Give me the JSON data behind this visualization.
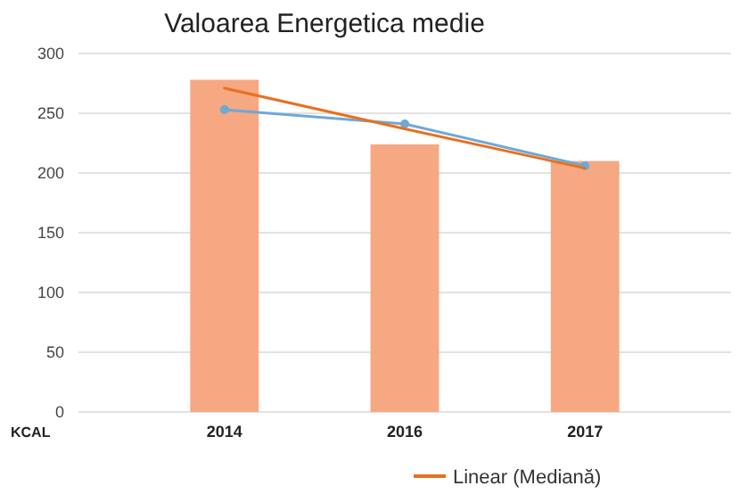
{
  "chart_data": {
    "type": "bar",
    "title": "Valoarea Energetica medie",
    "categories": [
      "2014",
      "2016",
      "2017"
    ],
    "series": [
      {
        "color": "#f5a882",
        "values": [
          278,
          224,
          210
        ]
      },
      {
        "type": "line",
        "color": "#6fa8d6",
        "values": [
          253,
          241,
          206
        ],
        "marker": "circle"
      },
      {
        "type": "line",
        "name": "Linear (Mediană)",
        "color": "#e8701f",
        "values": [
          271,
          237,
          204
        ],
        "marker": "none"
      }
    ],
    "ylabel": "KCAL",
    "ylim": [
      0,
      300
    ],
    "yticks": [
      0,
      50,
      100,
      150,
      200,
      250,
      300
    ],
    "grid": "y",
    "legend": "bottom"
  }
}
